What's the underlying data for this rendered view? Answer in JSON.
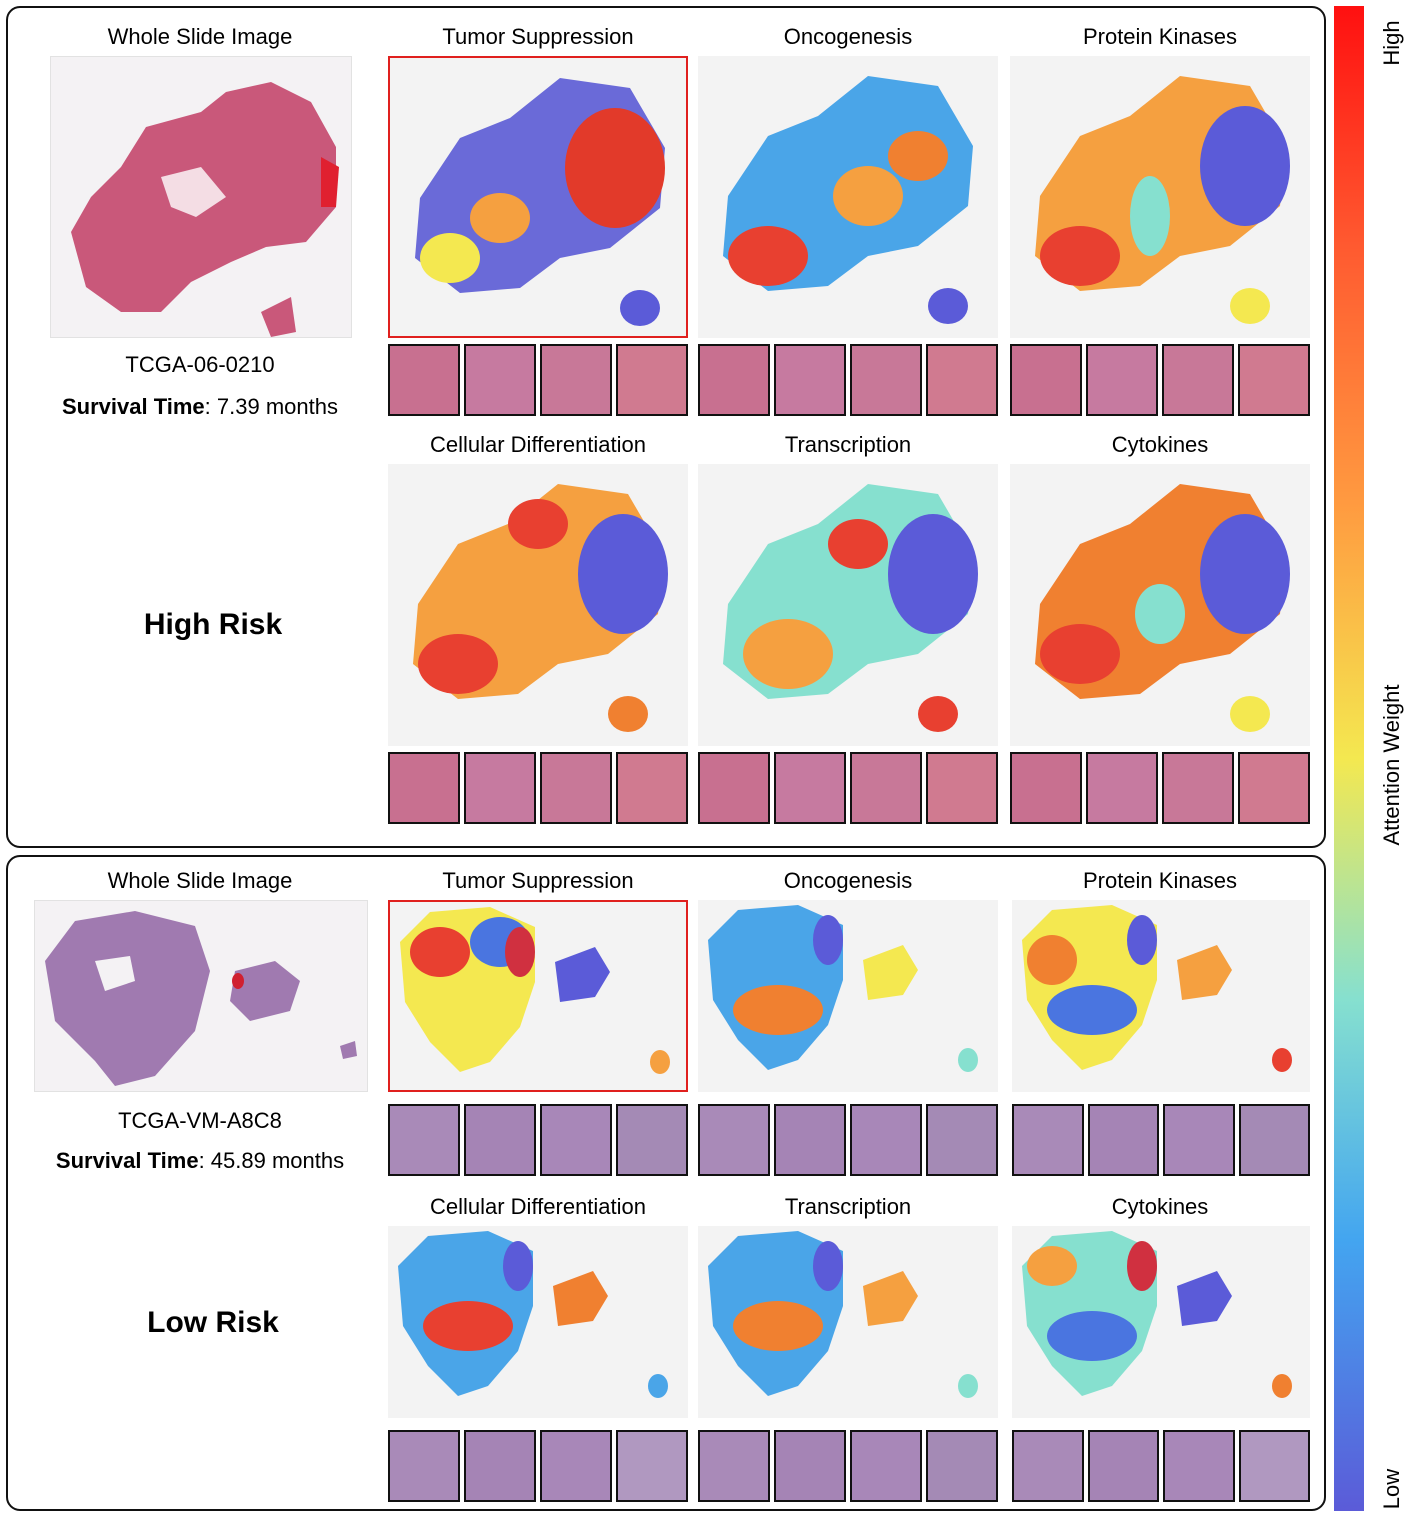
{
  "colorbar": {
    "high_label": "High",
    "title": "Attention Weight",
    "low_label": "Low",
    "colors": [
      "#ff1010",
      "#ff9a40",
      "#f4e850",
      "#86e0cf",
      "#43a5f0",
      "#5b5bd8"
    ]
  },
  "panels": [
    {
      "wsi_title": "Whole Slide Image",
      "case_id": "TCGA-06-0210",
      "survival_label": "Survival Time",
      "survival_value": ": 7.39 months",
      "risk": "High Risk",
      "maps": [
        "Tumor Suppression",
        "Oncogenesis",
        "Protein Kinases",
        "Cellular Differentiation",
        "Transcription",
        "Cytokines"
      ],
      "highlighted_map": "Tumor Suppression"
    },
    {
      "wsi_title": "Whole Slide Image",
      "case_id": "TCGA-VM-A8C8",
      "survival_label": "Survival Time",
      "survival_value": ": 45.89 months",
      "risk": "Low Risk",
      "maps": [
        "Tumor Suppression",
        "Oncogenesis",
        "Protein Kinases",
        "Cellular Differentiation",
        "Transcription",
        "Cytokines"
      ],
      "highlighted_map": "Tumor Suppression"
    }
  ],
  "tissue_colors": {
    "he_pink": "#d0607e",
    "he_purple": "#a07ab0"
  }
}
